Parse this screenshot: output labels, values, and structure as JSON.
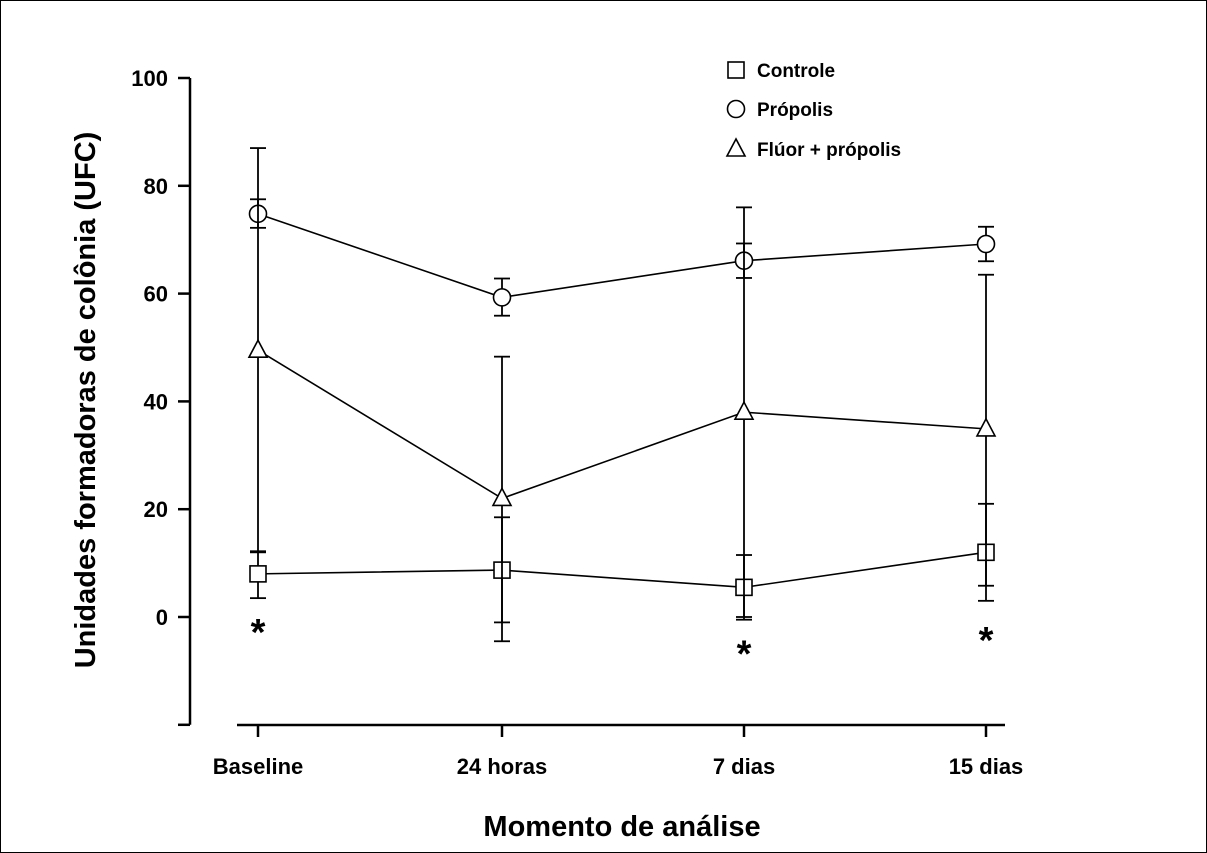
{
  "chart_data": {
    "type": "line",
    "xlabel": "Momento de análise",
    "ylabel": "Unidades formadoras de colônia (UFC)",
    "categories": [
      "Baseline",
      "24 horas",
      "7 dias",
      "15 dias"
    ],
    "ylim": [
      -20,
      100
    ],
    "yticks": [
      0,
      20,
      40,
      60,
      80,
      100
    ],
    "grid": false,
    "legend_position": "top-right",
    "series": [
      {
        "name": "Controle",
        "marker": "square",
        "values": [
          8,
          8.7,
          5.5,
          12
        ],
        "error_upper": [
          12,
          18.5,
          11.5,
          21
        ],
        "error_lower": [
          3.5,
          -1,
          -0.5,
          3
        ]
      },
      {
        "name": "Própolis",
        "marker": "circle",
        "values": [
          74.8,
          59.3,
          66.1,
          69.2
        ],
        "error_upper": [
          87,
          62.8,
          69.3,
          72.4
        ],
        "error_lower": [
          72.2,
          55.9,
          62.9,
          66
        ]
      },
      {
        "name": "Flúor + própolis",
        "marker": "triangle",
        "values": [
          49.5,
          22,
          38,
          34.9
        ],
        "error_upper": [
          77.5,
          48.3,
          76,
          63.5
        ],
        "error_lower": [
          12.2,
          -4.5,
          0,
          5.8
        ]
      }
    ],
    "annotations": [
      {
        "text": "*",
        "category": "Baseline",
        "y": -1.5
      },
      {
        "text": "*",
        "category": "7 dias",
        "y": -5.5
      },
      {
        "text": "*",
        "category": "15 dias",
        "y": -3
      }
    ]
  }
}
